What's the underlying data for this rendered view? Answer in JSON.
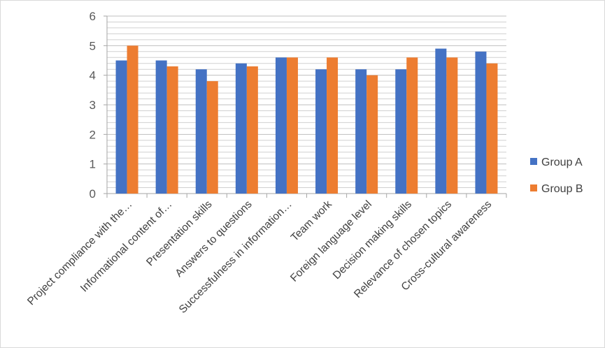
{
  "chart_data": {
    "type": "bar",
    "categories": [
      "Project compliance with the…",
      "Informational content of…",
      "Presentation skills",
      "Answers to questions",
      "Successfulness in information…",
      "Team work",
      "Foreign language level",
      "Decision making skills",
      "Relevance of chosen topics",
      "Cross-cultural awareness"
    ],
    "series": [
      {
        "name": "Group A",
        "color": "#4472C4",
        "values": [
          4.5,
          4.5,
          4.2,
          4.4,
          4.6,
          4.2,
          4.2,
          4.2,
          4.9,
          4.8
        ]
      },
      {
        "name": "Group B",
        "color": "#ED7D31",
        "values": [
          5.0,
          4.3,
          3.8,
          4.3,
          4.6,
          4.6,
          4.0,
          4.6,
          4.6,
          4.4
        ]
      }
    ],
    "yticks": [
      "0",
      "1",
      "2",
      "3",
      "4",
      "5",
      "6"
    ],
    "ylim": [
      0,
      6
    ],
    "minor_gridline_step": 0.2,
    "grid": true,
    "legend": "right"
  }
}
